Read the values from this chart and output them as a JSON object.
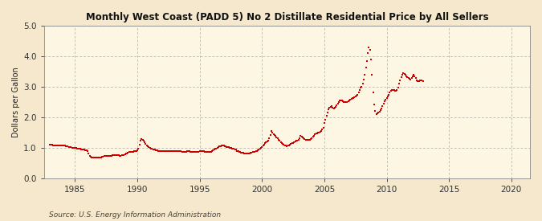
{
  "title": "Monthly West Coast (PADD 5) No 2 Distillate Residential Price by All Sellers",
  "ylabel": "Dollars per Gallon",
  "source_text": "Source: U.S. Energy Information Administration",
  "background_color": "#f5e8cc",
  "plot_bg_color": "#fdf6e3",
  "line_color": "#cc0000",
  "xlim": [
    1982.5,
    2021.5
  ],
  "ylim": [
    0.0,
    5.0
  ],
  "yticks": [
    0.0,
    1.0,
    2.0,
    3.0,
    4.0,
    5.0
  ],
  "xticks": [
    1985,
    1990,
    1995,
    2000,
    2005,
    2010,
    2015,
    2020
  ],
  "data": [
    [
      1983.0,
      1.1
    ],
    [
      1983.08,
      1.1
    ],
    [
      1983.17,
      1.09
    ],
    [
      1983.25,
      1.08
    ],
    [
      1983.33,
      1.08
    ],
    [
      1983.42,
      1.08
    ],
    [
      1983.5,
      1.07
    ],
    [
      1983.58,
      1.07
    ],
    [
      1983.67,
      1.07
    ],
    [
      1983.75,
      1.07
    ],
    [
      1983.83,
      1.07
    ],
    [
      1983.92,
      1.07
    ],
    [
      1984.0,
      1.07
    ],
    [
      1984.08,
      1.06
    ],
    [
      1984.17,
      1.06
    ],
    [
      1984.25,
      1.05
    ],
    [
      1984.33,
      1.05
    ],
    [
      1984.42,
      1.04
    ],
    [
      1984.5,
      1.03
    ],
    [
      1984.58,
      1.02
    ],
    [
      1984.67,
      1.01
    ],
    [
      1984.75,
      1.0
    ],
    [
      1984.83,
      1.0
    ],
    [
      1984.92,
      1.0
    ],
    [
      1985.0,
      1.0
    ],
    [
      1985.08,
      0.99
    ],
    [
      1985.17,
      0.98
    ],
    [
      1985.25,
      0.97
    ],
    [
      1985.33,
      0.97
    ],
    [
      1985.42,
      0.96
    ],
    [
      1985.5,
      0.95
    ],
    [
      1985.58,
      0.94
    ],
    [
      1985.67,
      0.93
    ],
    [
      1985.75,
      0.93
    ],
    [
      1985.83,
      0.92
    ],
    [
      1985.92,
      0.92
    ],
    [
      1986.0,
      0.9
    ],
    [
      1986.08,
      0.82
    ],
    [
      1986.17,
      0.74
    ],
    [
      1986.25,
      0.7
    ],
    [
      1986.33,
      0.69
    ],
    [
      1986.42,
      0.68
    ],
    [
      1986.5,
      0.68
    ],
    [
      1986.58,
      0.68
    ],
    [
      1986.67,
      0.68
    ],
    [
      1986.75,
      0.68
    ],
    [
      1986.83,
      0.68
    ],
    [
      1986.92,
      0.68
    ],
    [
      1987.0,
      0.68
    ],
    [
      1987.08,
      0.69
    ],
    [
      1987.17,
      0.7
    ],
    [
      1987.25,
      0.71
    ],
    [
      1987.33,
      0.72
    ],
    [
      1987.42,
      0.72
    ],
    [
      1987.5,
      0.72
    ],
    [
      1987.58,
      0.73
    ],
    [
      1987.67,
      0.74
    ],
    [
      1987.75,
      0.74
    ],
    [
      1987.83,
      0.74
    ],
    [
      1987.92,
      0.74
    ],
    [
      1988.0,
      0.76
    ],
    [
      1988.08,
      0.76
    ],
    [
      1988.17,
      0.76
    ],
    [
      1988.25,
      0.76
    ],
    [
      1988.33,
      0.76
    ],
    [
      1988.42,
      0.75
    ],
    [
      1988.5,
      0.75
    ],
    [
      1988.58,
      0.74
    ],
    [
      1988.67,
      0.74
    ],
    [
      1988.75,
      0.75
    ],
    [
      1988.83,
      0.75
    ],
    [
      1988.92,
      0.76
    ],
    [
      1989.0,
      0.78
    ],
    [
      1989.08,
      0.8
    ],
    [
      1989.17,
      0.82
    ],
    [
      1989.25,
      0.84
    ],
    [
      1989.33,
      0.86
    ],
    [
      1989.42,
      0.86
    ],
    [
      1989.5,
      0.86
    ],
    [
      1989.58,
      0.86
    ],
    [
      1989.67,
      0.87
    ],
    [
      1989.75,
      0.88
    ],
    [
      1989.83,
      0.88
    ],
    [
      1989.92,
      0.9
    ],
    [
      1990.0,
      0.92
    ],
    [
      1990.08,
      0.98
    ],
    [
      1990.17,
      1.1
    ],
    [
      1990.25,
      1.22
    ],
    [
      1990.33,
      1.28
    ],
    [
      1990.42,
      1.26
    ],
    [
      1990.5,
      1.22
    ],
    [
      1990.58,
      1.18
    ],
    [
      1990.67,
      1.12
    ],
    [
      1990.75,
      1.08
    ],
    [
      1990.83,
      1.04
    ],
    [
      1990.92,
      1.01
    ],
    [
      1991.0,
      1.0
    ],
    [
      1991.08,
      0.98
    ],
    [
      1991.17,
      0.96
    ],
    [
      1991.25,
      0.95
    ],
    [
      1991.33,
      0.94
    ],
    [
      1991.42,
      0.93
    ],
    [
      1991.5,
      0.92
    ],
    [
      1991.58,
      0.91
    ],
    [
      1991.67,
      0.9
    ],
    [
      1991.75,
      0.9
    ],
    [
      1991.83,
      0.89
    ],
    [
      1991.92,
      0.88
    ],
    [
      1992.0,
      0.88
    ],
    [
      1992.08,
      0.88
    ],
    [
      1992.17,
      0.88
    ],
    [
      1992.25,
      0.88
    ],
    [
      1992.33,
      0.88
    ],
    [
      1992.42,
      0.88
    ],
    [
      1992.5,
      0.88
    ],
    [
      1992.58,
      0.88
    ],
    [
      1992.67,
      0.88
    ],
    [
      1992.75,
      0.88
    ],
    [
      1992.83,
      0.88
    ],
    [
      1992.92,
      0.88
    ],
    [
      1993.0,
      0.9
    ],
    [
      1993.08,
      0.9
    ],
    [
      1993.17,
      0.9
    ],
    [
      1993.25,
      0.89
    ],
    [
      1993.33,
      0.89
    ],
    [
      1993.42,
      0.88
    ],
    [
      1993.5,
      0.88
    ],
    [
      1993.58,
      0.87
    ],
    [
      1993.67,
      0.87
    ],
    [
      1993.75,
      0.86
    ],
    [
      1993.83,
      0.86
    ],
    [
      1993.92,
      0.86
    ],
    [
      1994.0,
      0.88
    ],
    [
      1994.08,
      0.88
    ],
    [
      1994.17,
      0.88
    ],
    [
      1994.25,
      0.87
    ],
    [
      1994.33,
      0.87
    ],
    [
      1994.42,
      0.87
    ],
    [
      1994.5,
      0.86
    ],
    [
      1994.58,
      0.86
    ],
    [
      1994.67,
      0.86
    ],
    [
      1994.75,
      0.86
    ],
    [
      1994.83,
      0.86
    ],
    [
      1994.92,
      0.86
    ],
    [
      1995.0,
      0.88
    ],
    [
      1995.08,
      0.88
    ],
    [
      1995.17,
      0.88
    ],
    [
      1995.25,
      0.88
    ],
    [
      1995.33,
      0.88
    ],
    [
      1995.42,
      0.87
    ],
    [
      1995.5,
      0.86
    ],
    [
      1995.58,
      0.86
    ],
    [
      1995.67,
      0.86
    ],
    [
      1995.75,
      0.86
    ],
    [
      1995.83,
      0.86
    ],
    [
      1995.92,
      0.87
    ],
    [
      1996.0,
      0.9
    ],
    [
      1996.08,
      0.92
    ],
    [
      1996.17,
      0.94
    ],
    [
      1996.25,
      0.96
    ],
    [
      1996.33,
      0.98
    ],
    [
      1996.42,
      1.0
    ],
    [
      1996.5,
      1.02
    ],
    [
      1996.58,
      1.04
    ],
    [
      1996.67,
      1.05
    ],
    [
      1996.75,
      1.06
    ],
    [
      1996.83,
      1.06
    ],
    [
      1996.92,
      1.06
    ],
    [
      1997.0,
      1.05
    ],
    [
      1997.08,
      1.04
    ],
    [
      1997.17,
      1.03
    ],
    [
      1997.25,
      1.02
    ],
    [
      1997.33,
      1.01
    ],
    [
      1997.42,
      1.0
    ],
    [
      1997.5,
      0.99
    ],
    [
      1997.58,
      0.98
    ],
    [
      1997.67,
      0.97
    ],
    [
      1997.75,
      0.96
    ],
    [
      1997.83,
      0.95
    ],
    [
      1997.92,
      0.94
    ],
    [
      1998.0,
      0.9
    ],
    [
      1998.08,
      0.88
    ],
    [
      1998.17,
      0.86
    ],
    [
      1998.25,
      0.85
    ],
    [
      1998.33,
      0.84
    ],
    [
      1998.42,
      0.83
    ],
    [
      1998.5,
      0.83
    ],
    [
      1998.58,
      0.82
    ],
    [
      1998.67,
      0.82
    ],
    [
      1998.75,
      0.82
    ],
    [
      1998.83,
      0.82
    ],
    [
      1998.92,
      0.82
    ],
    [
      1999.0,
      0.82
    ],
    [
      1999.08,
      0.83
    ],
    [
      1999.17,
      0.84
    ],
    [
      1999.25,
      0.85
    ],
    [
      1999.33,
      0.86
    ],
    [
      1999.42,
      0.87
    ],
    [
      1999.5,
      0.88
    ],
    [
      1999.58,
      0.9
    ],
    [
      1999.67,
      0.92
    ],
    [
      1999.75,
      0.94
    ],
    [
      1999.83,
      0.96
    ],
    [
      1999.92,
      0.99
    ],
    [
      2000.0,
      1.02
    ],
    [
      2000.08,
      1.06
    ],
    [
      2000.17,
      1.1
    ],
    [
      2000.25,
      1.14
    ],
    [
      2000.33,
      1.18
    ],
    [
      2000.42,
      1.2
    ],
    [
      2000.5,
      1.22
    ],
    [
      2000.58,
      1.3
    ],
    [
      2000.67,
      1.42
    ],
    [
      2000.75,
      1.56
    ],
    [
      2000.83,
      1.5
    ],
    [
      2000.92,
      1.44
    ],
    [
      2001.0,
      1.42
    ],
    [
      2001.08,
      1.38
    ],
    [
      2001.17,
      1.34
    ],
    [
      2001.25,
      1.3
    ],
    [
      2001.33,
      1.26
    ],
    [
      2001.42,
      1.22
    ],
    [
      2001.5,
      1.18
    ],
    [
      2001.58,
      1.14
    ],
    [
      2001.67,
      1.12
    ],
    [
      2001.75,
      1.1
    ],
    [
      2001.83,
      1.08
    ],
    [
      2001.92,
      1.06
    ],
    [
      2002.0,
      1.04
    ],
    [
      2002.08,
      1.06
    ],
    [
      2002.17,
      1.08
    ],
    [
      2002.25,
      1.1
    ],
    [
      2002.33,
      1.12
    ],
    [
      2002.42,
      1.14
    ],
    [
      2002.5,
      1.16
    ],
    [
      2002.58,
      1.18
    ],
    [
      2002.67,
      1.2
    ],
    [
      2002.75,
      1.22
    ],
    [
      2002.83,
      1.24
    ],
    [
      2002.92,
      1.26
    ],
    [
      2003.0,
      1.32
    ],
    [
      2003.08,
      1.38
    ],
    [
      2003.17,
      1.36
    ],
    [
      2003.25,
      1.34
    ],
    [
      2003.33,
      1.3
    ],
    [
      2003.42,
      1.28
    ],
    [
      2003.5,
      1.26
    ],
    [
      2003.58,
      1.25
    ],
    [
      2003.67,
      1.25
    ],
    [
      2003.75,
      1.26
    ],
    [
      2003.83,
      1.27
    ],
    [
      2003.92,
      1.28
    ],
    [
      2004.0,
      1.32
    ],
    [
      2004.08,
      1.36
    ],
    [
      2004.17,
      1.4
    ],
    [
      2004.25,
      1.44
    ],
    [
      2004.33,
      1.46
    ],
    [
      2004.42,
      1.48
    ],
    [
      2004.5,
      1.49
    ],
    [
      2004.58,
      1.5
    ],
    [
      2004.67,
      1.52
    ],
    [
      2004.75,
      1.56
    ],
    [
      2004.83,
      1.6
    ],
    [
      2004.92,
      1.66
    ],
    [
      2005.0,
      1.8
    ],
    [
      2005.08,
      1.92
    ],
    [
      2005.17,
      2.06
    ],
    [
      2005.25,
      2.16
    ],
    [
      2005.33,
      2.26
    ],
    [
      2005.42,
      2.32
    ],
    [
      2005.5,
      2.34
    ],
    [
      2005.58,
      2.36
    ],
    [
      2005.67,
      2.32
    ],
    [
      2005.75,
      2.28
    ],
    [
      2005.83,
      2.3
    ],
    [
      2005.92,
      2.34
    ],
    [
      2006.0,
      2.38
    ],
    [
      2006.08,
      2.44
    ],
    [
      2006.17,
      2.5
    ],
    [
      2006.25,
      2.54
    ],
    [
      2006.33,
      2.56
    ],
    [
      2006.42,
      2.54
    ],
    [
      2006.5,
      2.52
    ],
    [
      2006.58,
      2.5
    ],
    [
      2006.67,
      2.49
    ],
    [
      2006.75,
      2.49
    ],
    [
      2006.83,
      2.5
    ],
    [
      2006.92,
      2.52
    ],
    [
      2007.0,
      2.56
    ],
    [
      2007.08,
      2.58
    ],
    [
      2007.17,
      2.6
    ],
    [
      2007.25,
      2.62
    ],
    [
      2007.33,
      2.64
    ],
    [
      2007.42,
      2.66
    ],
    [
      2007.5,
      2.68
    ],
    [
      2007.58,
      2.7
    ],
    [
      2007.67,
      2.74
    ],
    [
      2007.75,
      2.8
    ],
    [
      2007.83,
      2.9
    ],
    [
      2007.92,
      2.98
    ],
    [
      2008.0,
      3.0
    ],
    [
      2008.08,
      3.1
    ],
    [
      2008.17,
      3.24
    ],
    [
      2008.25,
      3.4
    ],
    [
      2008.33,
      3.62
    ],
    [
      2008.42,
      3.84
    ],
    [
      2008.5,
      4.1
    ],
    [
      2008.58,
      4.3
    ],
    [
      2008.67,
      4.22
    ],
    [
      2008.75,
      3.9
    ],
    [
      2008.83,
      3.4
    ],
    [
      2008.92,
      2.8
    ],
    [
      2009.0,
      2.42
    ],
    [
      2009.08,
      2.2
    ],
    [
      2009.17,
      2.1
    ],
    [
      2009.25,
      2.12
    ],
    [
      2009.33,
      2.14
    ],
    [
      2009.42,
      2.18
    ],
    [
      2009.5,
      2.22
    ],
    [
      2009.58,
      2.28
    ],
    [
      2009.67,
      2.36
    ],
    [
      2009.75,
      2.44
    ],
    [
      2009.83,
      2.52
    ],
    [
      2009.92,
      2.58
    ],
    [
      2010.0,
      2.62
    ],
    [
      2010.08,
      2.68
    ],
    [
      2010.17,
      2.74
    ],
    [
      2010.25,
      2.8
    ],
    [
      2010.33,
      2.86
    ],
    [
      2010.42,
      2.9
    ],
    [
      2010.5,
      2.9
    ],
    [
      2010.58,
      2.88
    ],
    [
      2010.67,
      2.86
    ],
    [
      2010.75,
      2.86
    ],
    [
      2010.83,
      2.9
    ],
    [
      2010.92,
      2.96
    ],
    [
      2011.0,
      3.1
    ],
    [
      2011.08,
      3.22
    ],
    [
      2011.17,
      3.3
    ],
    [
      2011.25,
      3.38
    ],
    [
      2011.33,
      3.44
    ],
    [
      2011.42,
      3.42
    ],
    [
      2011.5,
      3.38
    ],
    [
      2011.58,
      3.34
    ],
    [
      2011.67,
      3.3
    ],
    [
      2011.75,
      3.28
    ],
    [
      2011.83,
      3.26
    ],
    [
      2011.92,
      3.24
    ],
    [
      2012.0,
      3.28
    ],
    [
      2012.08,
      3.34
    ],
    [
      2012.17,
      3.38
    ],
    [
      2012.25,
      3.34
    ],
    [
      2012.33,
      3.28
    ],
    [
      2012.42,
      3.22
    ],
    [
      2012.5,
      3.18
    ],
    [
      2012.58,
      3.18
    ],
    [
      2012.67,
      3.2
    ],
    [
      2012.75,
      3.22
    ],
    [
      2012.83,
      3.2
    ],
    [
      2012.92,
      3.18
    ]
  ]
}
